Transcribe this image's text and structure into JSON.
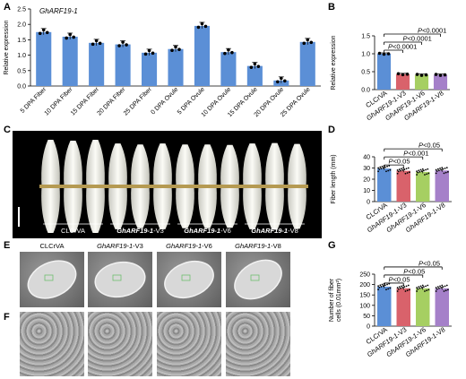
{
  "panels": {
    "A": "A",
    "B": "B",
    "C": "C",
    "D": "D",
    "E": "E",
    "F": "F",
    "G": "G"
  },
  "chart_A": {
    "type": "bar",
    "title": "GhARF19-1",
    "ylabel": "Relative expression",
    "ylim": [
      0,
      2.5
    ],
    "yticks": [
      "0.0",
      "0.5",
      "1.0",
      "1.5",
      "2.0",
      "2.5"
    ],
    "categories": [
      "5 DPA Fiber",
      "10 DPA Fiber",
      "15 DPA Fiber",
      "20 DPA Fiber",
      "25 DPA Fiber",
      "0 DPA Ovule",
      "5 DPA Ovule",
      "10 DPA Ovule",
      "15 DPA Ovule",
      "20 DPA Ovule",
      "25 DPA Ovule"
    ],
    "values": [
      1.75,
      1.6,
      1.4,
      1.35,
      1.08,
      1.2,
      1.95,
      1.1,
      0.65,
      0.18,
      1.43
    ],
    "bar_color": "#5b8fd6"
  },
  "chart_B": {
    "type": "bar",
    "ylabel": "Relative expression",
    "ylim": [
      0,
      1.5
    ],
    "yticks": [
      "0.0",
      "0.5",
      "1.0",
      "1.5"
    ],
    "categories": [
      "CLCrVA",
      "GhARF19-1-V3",
      "GhARF19-1-V6",
      "GhARF19-1-V8"
    ],
    "values": [
      1.0,
      0.43,
      0.41,
      0.41
    ],
    "colors": [
      "#5b8fd6",
      "#d9626b",
      "#a6cf62",
      "#a580c9"
    ],
    "sig": [
      "P<0.0001",
      "P<0.0001",
      "P<0.0001"
    ]
  },
  "chart_D": {
    "type": "bar",
    "ylabel": "Fiber length (mm)",
    "ylim": [
      0,
      40
    ],
    "yticks": [
      "0",
      "10",
      "20",
      "30",
      "40"
    ],
    "categories": [
      "CLCrVA",
      "GhARF19-1-V3",
      "GhARF19-1-V6",
      "GhARF19-1-V8"
    ],
    "values": [
      29.5,
      27.5,
      26.5,
      27.8
    ],
    "colors": [
      "#5b8fd6",
      "#d9626b",
      "#a6cf62",
      "#a580c9"
    ],
    "sig": [
      "P<0.05",
      "P<0.001",
      "P<0.05"
    ]
  },
  "chart_G": {
    "type": "bar",
    "ylabel": "Number of fiber cells (0.01mm²)",
    "ylabel_line1": "Number of fiber",
    "ylabel_line2": "cells (0.01mm²)",
    "ylim": [
      0,
      250
    ],
    "yticks": [
      "0",
      "50",
      "100",
      "150",
      "200",
      "250"
    ],
    "categories": [
      "CLCrVA",
      "GhARF19-1-V3",
      "GhARF19-1-V6",
      "GhARF19-1-V8"
    ],
    "values": [
      190,
      182,
      182,
      182
    ],
    "colors": [
      "#5b8fd6",
      "#d9626b",
      "#a6cf62",
      "#a580c9"
    ],
    "sig": [
      "P<0.05",
      "P<0.05",
      "P<0.05"
    ]
  },
  "panel_C": {
    "labels": [
      "CLCrVA",
      "GhARF19-1-V3",
      "GhARF19-1-V6",
      "GhARF19-1-V8"
    ]
  },
  "panel_E": {
    "labels": [
      "CLCrVA",
      "GhARF19-1-V3",
      "GhARF19-1-V6",
      "GhARF19-1-V8"
    ]
  }
}
